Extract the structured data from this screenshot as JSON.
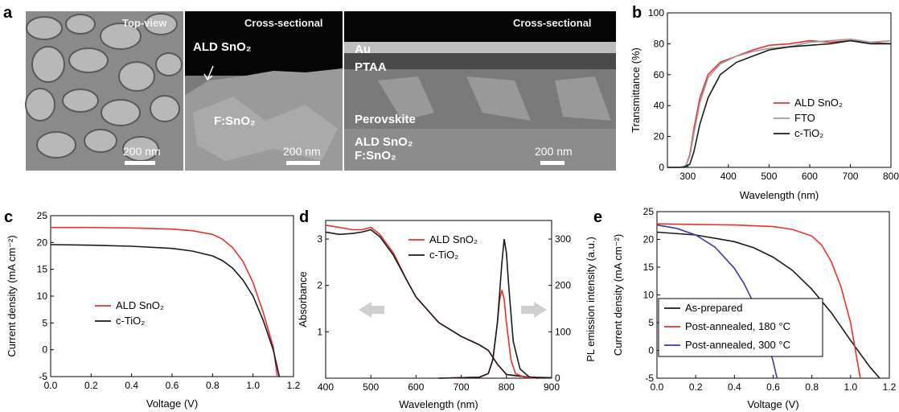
{
  "panels": {
    "a": {
      "letter": "a",
      "images": [
        {
          "title": "Top-view",
          "scale": "200 nm",
          "labels": []
        },
        {
          "title": "Cross-sectional",
          "scale": "200 nm",
          "labels": [
            "ALD SnO₂",
            "F:SnO₂"
          ]
        },
        {
          "title": "Cross-sectional",
          "scale": "200 nm",
          "labels": [
            "Au",
            "PTAA",
            "Perovskite",
            "ALD SnO₂",
            "F:SnO₂"
          ]
        }
      ]
    }
  },
  "chart_data": [
    {
      "panel": "b",
      "type": "line",
      "xlabel": "Wavelength (nm)",
      "ylabel": "Transmittance (%)",
      "xlim": [
        250,
        800
      ],
      "ylim": [
        0,
        100
      ],
      "xticks": [
        300,
        400,
        500,
        600,
        700,
        800
      ],
      "yticks": [
        0,
        20,
        40,
        60,
        80,
        100
      ],
      "legend": "center-right",
      "series": [
        {
          "name": "ALD SnO₂",
          "color": "#e8302e",
          "x": [
            250,
            280,
            295,
            305,
            315,
            330,
            350,
            380,
            420,
            460,
            500,
            550,
            600,
            650,
            700,
            750,
            800
          ],
          "y": [
            0,
            0,
            1,
            8,
            25,
            45,
            60,
            68,
            72,
            76,
            79,
            80,
            82,
            81,
            82,
            81,
            80
          ]
        },
        {
          "name": "FTO",
          "color": "#9a9a9a",
          "x": [
            250,
            280,
            295,
            305,
            315,
            330,
            350,
            380,
            420,
            460,
            500,
            550,
            600,
            650,
            700,
            750,
            800
          ],
          "y": [
            0,
            0,
            1,
            7,
            22,
            42,
            58,
            67,
            72,
            75,
            77,
            78,
            81,
            82,
            83,
            81,
            82
          ]
        },
        {
          "name": "c-TiO₂",
          "color": "#1a1a1a",
          "x": [
            250,
            290,
            305,
            315,
            330,
            350,
            380,
            420,
            460,
            500,
            550,
            600,
            650,
            700,
            750,
            800
          ],
          "y": [
            0,
            0,
            2,
            10,
            28,
            45,
            60,
            68,
            72,
            76,
            78,
            79,
            80,
            82,
            80,
            80
          ]
        }
      ]
    },
    {
      "panel": "c",
      "type": "line",
      "xlabel": "Voltage (V)",
      "ylabel": "Current density (mA cm⁻²)",
      "xlim": [
        0.0,
        1.2
      ],
      "ylim": [
        -5,
        25
      ],
      "xticks": [
        0.0,
        0.2,
        0.4,
        0.6,
        0.8,
        1.0,
        1.2
      ],
      "yticks": [
        -5,
        0,
        5,
        10,
        15,
        20,
        25
      ],
      "legend": "center-left",
      "series": [
        {
          "name": "ALD SnO₂",
          "color": "#e8302e",
          "x": [
            0.0,
            0.2,
            0.4,
            0.6,
            0.7,
            0.8,
            0.85,
            0.9,
            0.95,
            1.0,
            1.05,
            1.1,
            1.12
          ],
          "y": [
            22.8,
            22.8,
            22.7,
            22.5,
            22.2,
            21.5,
            20.6,
            19.0,
            16.5,
            12.5,
            7.0,
            0.5,
            -5
          ]
        },
        {
          "name": "c-TiO₂",
          "color": "#1a1a1a",
          "x": [
            0.0,
            0.2,
            0.4,
            0.6,
            0.7,
            0.8,
            0.85,
            0.9,
            0.95,
            1.0,
            1.05,
            1.1,
            1.13
          ],
          "y": [
            19.6,
            19.5,
            19.3,
            18.9,
            18.4,
            17.5,
            16.6,
            15.2,
            13.0,
            10.0,
            5.5,
            0.0,
            -5
          ]
        }
      ]
    },
    {
      "panel": "d",
      "type": "line",
      "xlabel": "Wavelength (nm)",
      "ylabel": "Absorbance",
      "y2label": "PL emission intensity (a.u.)",
      "xlim": [
        400,
        900
      ],
      "ylim": [
        0,
        3.4
      ],
      "y2lim": [
        0,
        340
      ],
      "xticks": [
        400,
        500,
        600,
        700,
        800,
        900
      ],
      "yticks": [
        1,
        2,
        3
      ],
      "y2ticks": [
        0,
        100,
        200,
        300
      ],
      "legend": "top-center",
      "series": [
        {
          "name": "ALD SnO₂",
          "axis": "left",
          "color": "#e8302e",
          "x": [
            400,
            430,
            460,
            480,
            500,
            520,
            550,
            580,
            600,
            650,
            700,
            740,
            760,
            780,
            800,
            850,
            900
          ],
          "y": [
            3.3,
            3.25,
            3.2,
            3.2,
            3.25,
            3.1,
            2.7,
            2.1,
            1.75,
            1.2,
            0.9,
            0.72,
            0.6,
            0.3,
            0.08,
            0.02,
            0.01
          ]
        },
        {
          "name": "c-TiO₂",
          "axis": "left",
          "color": "#1a1a1a",
          "x": [
            400,
            430,
            460,
            480,
            500,
            520,
            550,
            580,
            600,
            650,
            700,
            740,
            760,
            780,
            800,
            850,
            900
          ],
          "y": [
            3.15,
            3.1,
            3.12,
            3.15,
            3.2,
            3.05,
            2.65,
            2.1,
            1.75,
            1.2,
            0.9,
            0.72,
            0.6,
            0.3,
            0.08,
            0.02,
            0.01
          ]
        },
        {
          "name": "ALD SnO₂",
          "axis": "right",
          "color": "#e8302e",
          "x": [
            650,
            740,
            760,
            770,
            780,
            785,
            790,
            795,
            800,
            810,
            820,
            840,
            870
          ],
          "y": [
            0,
            2,
            10,
            40,
            120,
            170,
            190,
            170,
            120,
            40,
            10,
            2,
            0
          ]
        },
        {
          "name": "c-TiO₂",
          "axis": "right",
          "color": "#1a1a1a",
          "x": [
            650,
            740,
            760,
            770,
            780,
            790,
            795,
            800,
            805,
            815,
            830,
            850,
            870
          ],
          "y": [
            0,
            2,
            10,
            40,
            120,
            250,
            300,
            270,
            200,
            80,
            20,
            3,
            0
          ]
        }
      ]
    },
    {
      "panel": "e",
      "type": "line",
      "xlabel": "Voltage (V)",
      "ylabel": "Current density (mA cm⁻²)",
      "xlim": [
        0.0,
        1.2
      ],
      "ylim": [
        -5,
        25
      ],
      "xticks": [
        0.0,
        0.2,
        0.4,
        0.6,
        0.8,
        1.0,
        1.2
      ],
      "yticks": [
        -5,
        0,
        5,
        10,
        15,
        20,
        25
      ],
      "legend": "bottom-left",
      "series": [
        {
          "name": "As-prepared",
          "color": "#1a1a1a",
          "x": [
            0.0,
            0.2,
            0.4,
            0.5,
            0.6,
            0.7,
            0.8,
            0.9,
            1.0,
            1.1,
            1.15
          ],
          "y": [
            21.3,
            20.8,
            19.6,
            18.5,
            16.8,
            14.4,
            11.0,
            6.8,
            1.8,
            -3.0,
            -5
          ]
        },
        {
          "name": "Post-annealed, 180 °C",
          "color": "#e8302e",
          "x": [
            0.0,
            0.2,
            0.4,
            0.6,
            0.7,
            0.8,
            0.85,
            0.9,
            0.95,
            1.0,
            1.05
          ],
          "y": [
            22.8,
            22.7,
            22.6,
            22.3,
            21.8,
            20.6,
            19.0,
            16.0,
            11.5,
            5.0,
            -5
          ]
        },
        {
          "name": "Post-annealed, 300 °C",
          "color": "#3a3aa8",
          "x": [
            0.0,
            0.1,
            0.2,
            0.3,
            0.4,
            0.45,
            0.5,
            0.55,
            0.6,
            0.62
          ],
          "y": [
            22.6,
            22.0,
            20.8,
            18.6,
            14.8,
            12.0,
            8.5,
            4.0,
            -2.0,
            -5
          ]
        }
      ]
    }
  ]
}
